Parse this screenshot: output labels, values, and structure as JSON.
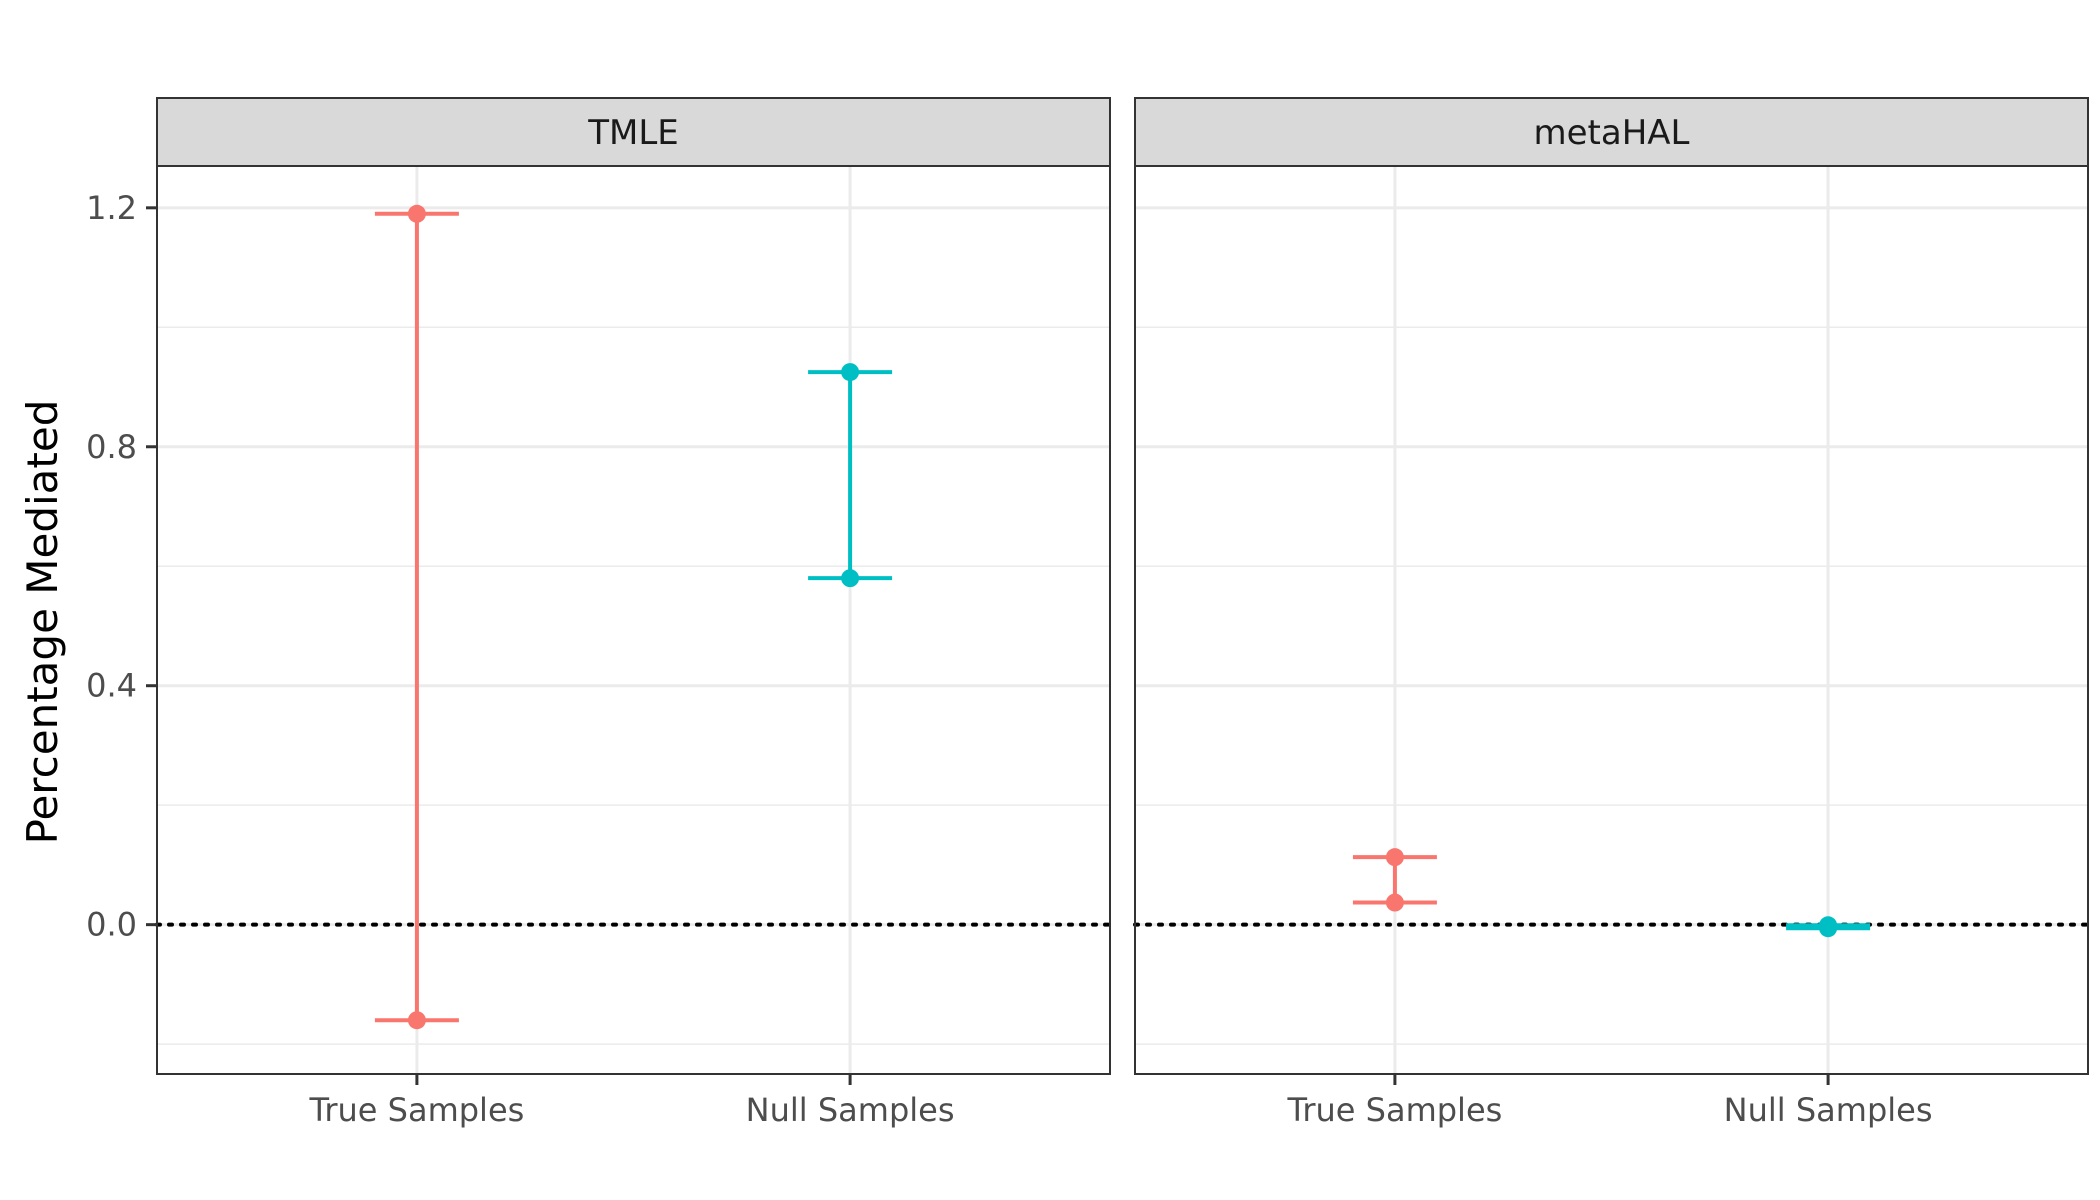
{
  "chart_data": {
    "type": "errorbar",
    "layout": "faceted",
    "title": "",
    "xlabel": "",
    "ylabel": "Percentage Mediated",
    "ylim": [
      -0.25,
      1.27
    ],
    "yticks": [
      0.0,
      0.4,
      0.8,
      1.2
    ],
    "yticks_labels": [
      "0.0",
      "0.4",
      "0.8",
      "1.2"
    ],
    "categories": [
      "True Samples",
      "Null Samples"
    ],
    "grid": true,
    "legend": "none",
    "reference_line": {
      "y": 0.0,
      "style": "dotted",
      "color": "#000000"
    },
    "colors": {
      "True Samples": "#F8766D",
      "Null Samples": "#00BFC4"
    },
    "panels": [
      {
        "label": "TMLE",
        "intervals": [
          {
            "category": "True Samples",
            "lower": -0.16,
            "upper": 1.19
          },
          {
            "category": "Null Samples",
            "lower": 0.58,
            "upper": 0.925
          }
        ]
      },
      {
        "label": "metaHAL",
        "intervals": [
          {
            "category": "True Samples",
            "lower": 0.037,
            "upper": 0.113
          },
          {
            "category": "Null Samples",
            "lower": -0.006,
            "upper": -0.001
          }
        ]
      }
    ]
  }
}
